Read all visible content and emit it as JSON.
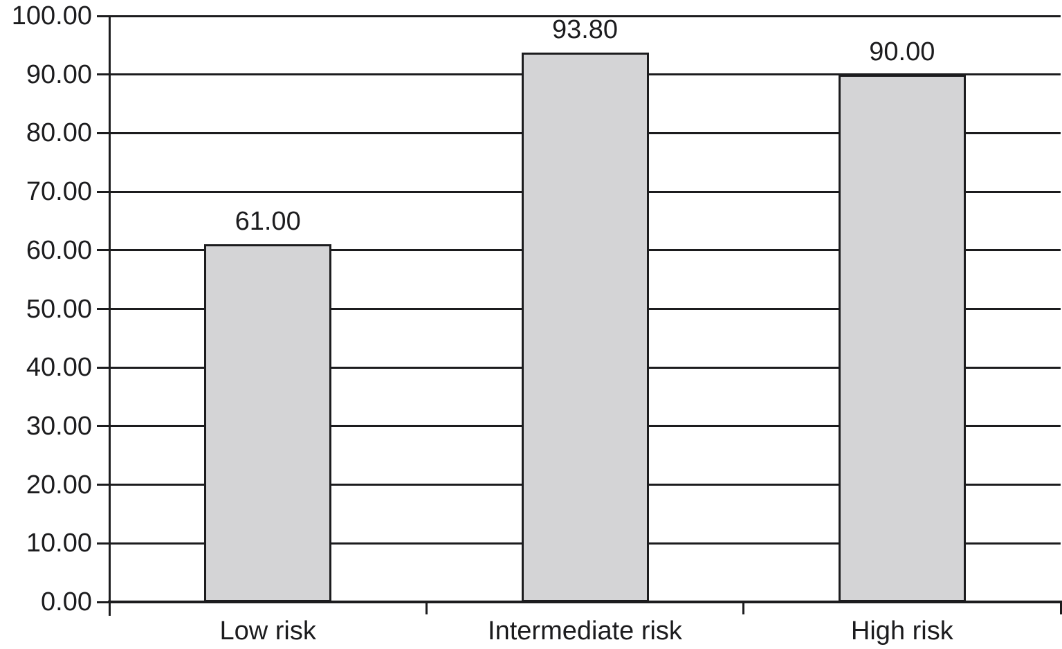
{
  "chart_data": {
    "type": "bar",
    "title": "",
    "xlabel": "",
    "ylabel": "",
    "categories": [
      "Low risk",
      "Intermediate risk",
      "High risk"
    ],
    "values": [
      61.0,
      93.8,
      90.0
    ],
    "data_labels": [
      "61.00",
      "93.80",
      "90.00"
    ],
    "y_tick_labels": [
      "100.00",
      "90.00",
      "80.00",
      "70.00",
      "60.00",
      "50.00",
      "40.00",
      "30.00",
      "20.00",
      "10.00",
      "0.00"
    ],
    "ylim": [
      0,
      100
    ],
    "y_tick_step": 10,
    "gridlines": "horizontal",
    "legend": "none",
    "colors": {
      "bar_fill": "#d4d4d6",
      "bar_border": "#1c1c1e",
      "axis_line": "#1c1c1e",
      "text": "#1c1c1e",
      "background": "#ffffff"
    }
  }
}
